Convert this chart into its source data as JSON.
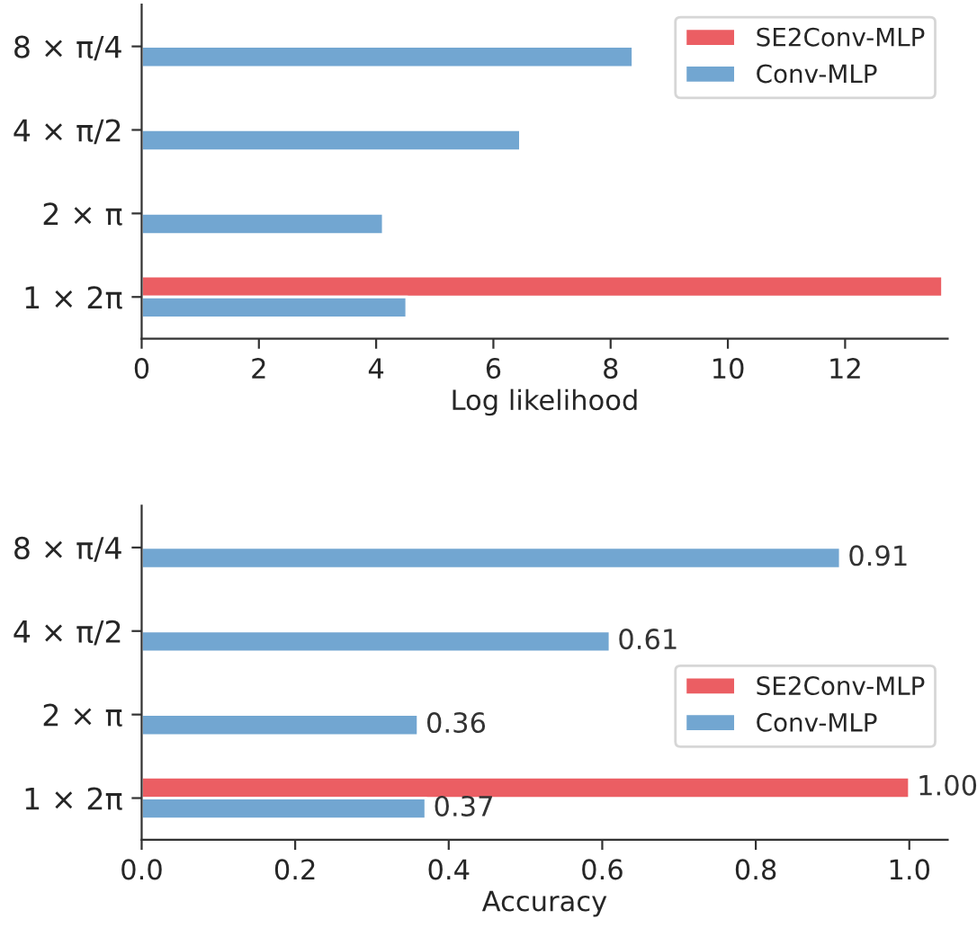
{
  "chart_data": [
    {
      "type": "bar",
      "orientation": "horizontal",
      "categories": [
        "8 × π/4",
        "4 × π/2",
        "2 × π",
        "1 × 2π"
      ],
      "xlabel": "Log likelihood",
      "xlim": [
        0,
        13.75
      ],
      "xticks": [
        0,
        2,
        4,
        6,
        8,
        10,
        12
      ],
      "legend": "top right",
      "grid": false,
      "series": [
        {
          "name": "SE2Conv-MLP",
          "color": "#eb5e63",
          "values": [
            null,
            null,
            null,
            13.66
          ]
        },
        {
          "name": "Conv-MLP",
          "color": "#72a6d1",
          "values": [
            8.38,
            6.46,
            4.12,
            4.52
          ]
        }
      ]
    },
    {
      "type": "bar",
      "orientation": "horizontal",
      "categories": [
        "8 × π/4",
        "4 × π/2",
        "2 × π",
        "1 × 2π"
      ],
      "xlabel": "Accuracy",
      "xlim": [
        0,
        1.05
      ],
      "xticks": [
        {
          "value": 0,
          "label": "0.0"
        },
        {
          "value": 0.2,
          "label": "0.2"
        },
        {
          "value": 0.4,
          "label": "0.4"
        },
        {
          "value": 0.6,
          "label": "0.6"
        },
        {
          "value": 0.8,
          "label": "0.8"
        },
        {
          "value": 1,
          "label": "1.0"
        }
      ],
      "legend": "center right",
      "grid": false,
      "series": [
        {
          "name": "SE2Conv-MLP",
          "color": "#eb5e63",
          "values": [
            null,
            null,
            null,
            1.0
          ],
          "value_labels": [
            null,
            null,
            null,
            "1.00"
          ]
        },
        {
          "name": "Conv-MLP",
          "color": "#72a6d1",
          "values": [
            0.91,
            0.61,
            0.36,
            0.37
          ],
          "value_labels": [
            "0.91",
            "0.61",
            "0.36",
            "0.37"
          ]
        }
      ]
    }
  ]
}
